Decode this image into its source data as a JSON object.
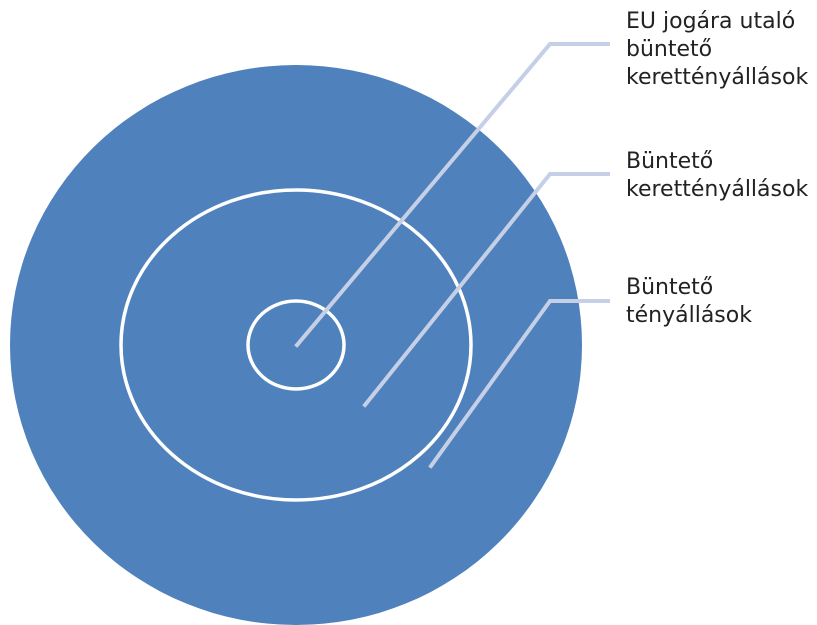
{
  "diagram": {
    "colors": {
      "outer_fill": "#4F81BD",
      "ring_stroke": "#FFFFFF",
      "leader_line": "#C5D0E6",
      "label_text": "#222222"
    },
    "labels": [
      {
        "id": "eu-jogara-utalo",
        "lines": [
          "EU jogára utaló",
          "büntető",
          "kerettényállások"
        ]
      },
      {
        "id": "bunteto-kerettenyallasok",
        "lines": [
          "Büntető",
          "kerettényállások"
        ]
      },
      {
        "id": "bunteto-tenyallasok",
        "lines": [
          "Büntető",
          "tényállások"
        ]
      }
    ]
  }
}
